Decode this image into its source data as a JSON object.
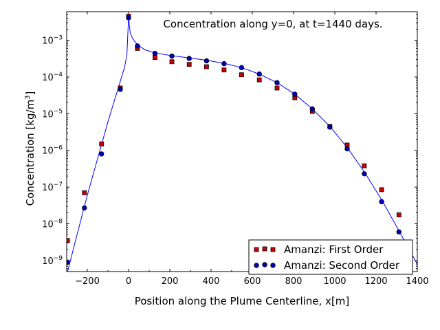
{
  "chart_data": {
    "type": "scatter",
    "title": "",
    "annotation": "Concentration along y=0, at t=1440 days.",
    "xlabel": "Position along the Plume Centerline, x[m]",
    "ylabel_main": "Concentration [kg/m",
    "ylabel_sup": "3",
    "ylabel_end": "]",
    "xlim": [
      -300,
      1400
    ],
    "ylim": [
      5e-10,
      0.006
    ],
    "yscale": "log",
    "x_ticks": [
      -200,
      0,
      200,
      400,
      600,
      800,
      1000,
      1200,
      1400
    ],
    "x_tick_labels": [
      "−200",
      "0",
      "200",
      "400",
      "600",
      "800",
      "1000",
      "1200",
      "1400"
    ],
    "y_tick_exponents": [
      -9,
      -8,
      -7,
      -6,
      -5,
      -4,
      -3
    ],
    "y_tick_base": "10",
    "legend_position": "lower-right",
    "series": [
      {
        "name": "Amanzi: First Order",
        "marker": "square",
        "color": "#cc0000",
        "x": [
          -296,
          -214,
          -131,
          -40,
          0,
          43,
          128,
          210,
          294,
          378,
          463,
          548,
          634,
          720,
          806,
          891,
          976,
          1060,
          1143,
          1227,
          1311
        ],
        "y": [
          3.5e-09,
          7e-08,
          1.5e-06,
          5e-05,
          0.0045,
          0.0006,
          0.00034,
          0.00026,
          0.00022,
          0.00019,
          0.000155,
          0.000115,
          8.3e-05,
          5e-05,
          2.7e-05,
          1.15e-05,
          4.5e-06,
          1.4e-06,
          3.8e-07,
          8.5e-08,
          1.75e-08
        ]
      },
      {
        "name": "Amanzi: Second Order",
        "marker": "circle",
        "color": "#0000bb",
        "x": [
          -296,
          -214,
          -131,
          -40,
          0,
          43,
          128,
          210,
          294,
          378,
          463,
          548,
          634,
          720,
          806,
          891,
          976,
          1060,
          1143,
          1227,
          1311
        ],
        "y": [
          9e-10,
          2.7e-08,
          8e-07,
          4.6e-05,
          0.0041,
          0.0007,
          0.00044,
          0.00037,
          0.00032,
          0.000275,
          0.00023,
          0.00018,
          0.00012,
          7e-05,
          3.4e-05,
          1.35e-05,
          4.3e-06,
          1.1e-06,
          2.3e-07,
          4e-08,
          6e-09
        ]
      },
      {
        "name": "",
        "marker": "line",
        "color": "#0000ff",
        "x": [
          -300,
          -250,
          -200,
          -150,
          -100,
          -50,
          -20,
          -8,
          0,
          8,
          20,
          43,
          80,
          128,
          210,
          294,
          378,
          463,
          548,
          634,
          720,
          806,
          891,
          976,
          1060,
          1143,
          1227,
          1311,
          1360,
          1400
        ],
        "y": [
          4e-10,
          5e-09,
          6e-08,
          6e-07,
          6e-06,
          5e-05,
          0.00018,
          0.0004,
          0.0042,
          0.0016,
          0.0011,
          0.00075,
          0.00055,
          0.00045,
          0.00038,
          0.00033,
          0.000285,
          0.000235,
          0.00018,
          0.00012,
          7e-05,
          3.4e-05,
          1.35e-05,
          4.5e-06,
          1.2e-06,
          2.6e-07,
          4.5e-08,
          6.5e-09,
          2e-09,
          8e-10
        ]
      }
    ]
  }
}
